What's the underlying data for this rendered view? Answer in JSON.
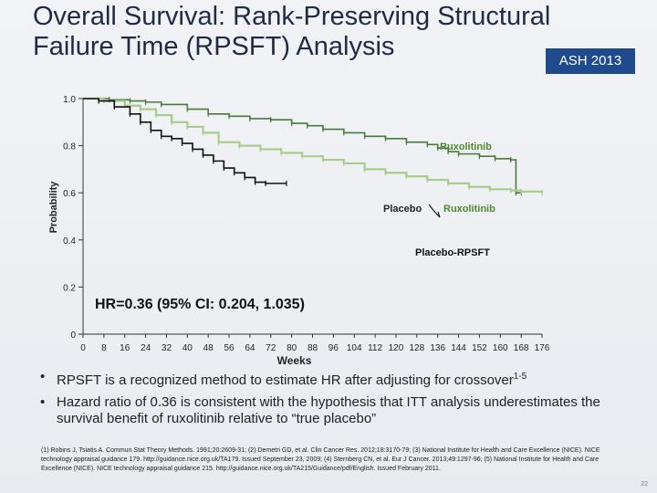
{
  "slide": {
    "title": "Overall Survival: Rank-Preserving Structural Failure Time (RPSFT) Analysis",
    "badge": "ASH 2013",
    "page_number": "22"
  },
  "chart_data": {
    "type": "line",
    "title": "",
    "xlabel": "Weeks",
    "ylabel": "Probability",
    "xlim": [
      0,
      176
    ],
    "ylim": [
      0,
      1.0
    ],
    "x_ticks": [
      "0",
      "8",
      "16",
      "24",
      "32",
      "40",
      "48",
      "56",
      "64",
      "72",
      "80",
      "88",
      "96",
      "104",
      "112",
      "120",
      "128",
      "136",
      "144",
      "152",
      "160",
      "168",
      "176"
    ],
    "y_ticks": [
      "0",
      "0.2",
      "0.4",
      "0.6",
      "0.8",
      "1.0"
    ],
    "annotation": "HR=0.36 (95% CI: 0.204, 1.035)",
    "series_labels": {
      "ruxolitinib": "Ruxolitinib",
      "crossover_left": "Placebo",
      "crossover_right": "Ruxolitinib",
      "rpsft": "Placebo-RPSFT"
    },
    "colors": {
      "ruxolitinib": "#4a7a3a",
      "crossover": "#a8cc8a",
      "rpsft": "#111111",
      "label_green": "#4e8a2e"
    },
    "series": [
      {
        "name": "Ruxolitinib",
        "x": [
          0,
          10,
          18,
          24,
          30,
          40,
          48,
          56,
          64,
          72,
          80,
          86,
          92,
          100,
          108,
          116,
          124,
          132,
          136,
          140,
          144,
          152,
          158,
          164,
          166,
          168
        ],
        "y": [
          1.0,
          0.995,
          0.99,
          0.985,
          0.975,
          0.955,
          0.935,
          0.925,
          0.915,
          0.91,
          0.895,
          0.885,
          0.87,
          0.855,
          0.84,
          0.83,
          0.815,
          0.805,
          0.79,
          0.775,
          0.765,
          0.755,
          0.745,
          0.74,
          0.6,
          0.6
        ]
      },
      {
        "name": "Placebo → Ruxolitinib",
        "x": [
          0,
          8,
          16,
          22,
          28,
          34,
          40,
          46,
          52,
          60,
          68,
          76,
          84,
          92,
          100,
          108,
          116,
          124,
          132,
          140,
          148,
          156,
          164,
          168,
          176
        ],
        "y": [
          1.0,
          0.99,
          0.97,
          0.955,
          0.93,
          0.9,
          0.88,
          0.855,
          0.815,
          0.8,
          0.785,
          0.77,
          0.755,
          0.74,
          0.725,
          0.7,
          0.685,
          0.67,
          0.655,
          0.64,
          0.625,
          0.615,
          0.61,
          0.605,
          0.6
        ]
      },
      {
        "name": "Placebo-RPSFT",
        "x": [
          0,
          6,
          12,
          18,
          22,
          26,
          30,
          34,
          38,
          42,
          46,
          50,
          54,
          58,
          62,
          66,
          70,
          78
        ],
        "y": [
          1.0,
          0.99,
          0.965,
          0.935,
          0.9,
          0.865,
          0.84,
          0.83,
          0.81,
          0.785,
          0.76,
          0.735,
          0.705,
          0.685,
          0.665,
          0.645,
          0.64,
          0.64
        ]
      }
    ]
  },
  "bullets": [
    {
      "symbol": "•",
      "text": "RPSFT is a recognized method to estimate HR after adjusting for crossover",
      "sup": "1-5"
    },
    {
      "symbol": "•",
      "text": "Hazard ratio of 0.36 is consistent with the hypothesis that ITT analysis underestimates the survival benefit of ruxolitinib relative to “true placebo”",
      "sup": ""
    }
  ],
  "references": "(1) Robins J, Tsiatis A. Commun Stat Theory Methods. 1991;20:2609-31; (2) Demetri GD, et al. Clin Cancer Res. 2012;18:3170-79; (3) National Institute for Health and Care Excellence (NICE). NICE technology appraisal guidance 179. http://guidance.nice.org.uk/TA179. Issued September 23, 2009; (4) Sternberg CN, et al. Eur J Cancer. 2013;49:1297-96; (5) National Institute for Health and Care Excellence (NICE). NICE technology appraisal guidance 215. http://guidance.nice.org.uk/TA215/Guidance/pdf/English. Issued February 2011."
}
